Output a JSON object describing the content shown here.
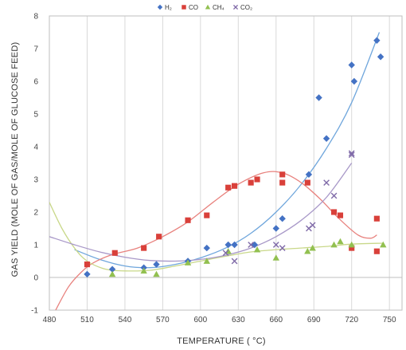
{
  "chart_data": {
    "type": "scatter",
    "title": "",
    "xlabel": "TEMPERATURE ( °C)",
    "ylabel": "GAS YIELD (MOLE OF GAS/MOLE OF GLUCOSE FEED)",
    "xlim": [
      480,
      760
    ],
    "ylim": [
      -1,
      8
    ],
    "x_ticks": [
      480,
      510,
      540,
      570,
      600,
      630,
      660,
      690,
      720,
      750
    ],
    "y_ticks": [
      -1,
      0,
      1,
      2,
      3,
      4,
      5,
      6,
      7,
      8
    ],
    "x_tick_labels": [
      "480",
      "510",
      "540",
      "570",
      "600",
      "630",
      "660",
      "690",
      "720",
      "750"
    ],
    "y_tick_labels": [
      "-1",
      "0",
      "1",
      "2",
      "3",
      "4",
      "5",
      "6",
      "7",
      "8"
    ],
    "grid": "vertical",
    "legend_position": "top-center",
    "series": [
      {
        "name": "H₂",
        "marker": "diamond",
        "color": "#4472C4",
        "points": [
          [
            510,
            0.1
          ],
          [
            530,
            0.25
          ],
          [
            555,
            0.3
          ],
          [
            565,
            0.4
          ],
          [
            590,
            0.5
          ],
          [
            605,
            0.9
          ],
          [
            622,
            1.0
          ],
          [
            627,
            1.0
          ],
          [
            643,
            1.0
          ],
          [
            660,
            1.5
          ],
          [
            665,
            1.8
          ],
          [
            686,
            3.15
          ],
          [
            694,
            5.5
          ],
          [
            700,
            4.25
          ],
          [
            720,
            6.5
          ],
          [
            722,
            6.0
          ],
          [
            740,
            7.25
          ],
          [
            743,
            6.75
          ]
        ]
      },
      {
        "name": "CO",
        "marker": "square",
        "color": "#D9403A",
        "points": [
          [
            510,
            0.4
          ],
          [
            532,
            0.75
          ],
          [
            555,
            0.9
          ],
          [
            567,
            1.25
          ],
          [
            590,
            1.75
          ],
          [
            605,
            1.9
          ],
          [
            622,
            2.75
          ],
          [
            627,
            2.8
          ],
          [
            640,
            2.9
          ],
          [
            645,
            3.0
          ],
          [
            665,
            3.15
          ],
          [
            665,
            2.9
          ],
          [
            685,
            2.9
          ],
          [
            706,
            2.0
          ],
          [
            711,
            1.9
          ],
          [
            720,
            0.9
          ],
          [
            740,
            1.8
          ],
          [
            740,
            0.8
          ]
        ]
      },
      {
        "name": "CH₄",
        "marker": "triangle",
        "color": "#92C050",
        "points": [
          [
            530,
            0.1
          ],
          [
            555,
            0.2
          ],
          [
            565,
            0.1
          ],
          [
            590,
            0.45
          ],
          [
            605,
            0.5
          ],
          [
            622,
            0.8
          ],
          [
            645,
            0.85
          ],
          [
            660,
            0.6
          ],
          [
            685,
            0.8
          ],
          [
            689,
            0.9
          ],
          [
            706,
            1.0
          ],
          [
            711,
            1.1
          ],
          [
            720,
            1.0
          ],
          [
            745,
            1.0
          ]
        ]
      },
      {
        "name": "CO₂",
        "marker": "x",
        "color": "#7F6AA8",
        "points": [
          [
            620,
            0.75
          ],
          [
            627,
            0.5
          ],
          [
            640,
            1.0
          ],
          [
            660,
            1.0
          ],
          [
            665,
            0.9
          ],
          [
            686,
            1.5
          ],
          [
            689,
            1.6
          ],
          [
            700,
            2.9
          ],
          [
            706,
            2.5
          ],
          [
            720,
            3.8
          ],
          [
            720,
            3.75
          ]
        ]
      }
    ],
    "trendlines": [
      {
        "series": "H₂",
        "color": "#6FA6DC",
        "points": [
          [
            500,
            0.85
          ],
          [
            520,
            0.55
          ],
          [
            540,
            0.35
          ],
          [
            560,
            0.3
          ],
          [
            580,
            0.4
          ],
          [
            600,
            0.6
          ],
          [
            620,
            0.9
          ],
          [
            640,
            1.35
          ],
          [
            660,
            2.0
          ],
          [
            680,
            2.85
          ],
          [
            700,
            3.95
          ],
          [
            720,
            5.35
          ],
          [
            742,
            7.5
          ]
        ]
      },
      {
        "series": "CO",
        "color": "#E8827E",
        "points": [
          [
            485,
            -1.0
          ],
          [
            495,
            -0.3
          ],
          [
            505,
            0.15
          ],
          [
            515,
            0.45
          ],
          [
            530,
            0.7
          ],
          [
            550,
            0.9
          ],
          [
            570,
            1.25
          ],
          [
            590,
            1.7
          ],
          [
            610,
            2.3
          ],
          [
            630,
            2.85
          ],
          [
            650,
            3.2
          ],
          [
            665,
            3.2
          ],
          [
            680,
            2.9
          ],
          [
            695,
            2.4
          ],
          [
            710,
            1.8
          ],
          [
            725,
            1.3
          ],
          [
            735,
            1.2
          ],
          [
            740,
            1.3
          ]
        ]
      },
      {
        "series": "CH₄",
        "color": "#C9D88A",
        "points": [
          [
            480,
            2.3
          ],
          [
            490,
            1.5
          ],
          [
            500,
            0.9
          ],
          [
            510,
            0.5
          ],
          [
            525,
            0.25
          ],
          [
            540,
            0.2
          ],
          [
            560,
            0.22
          ],
          [
            580,
            0.35
          ],
          [
            600,
            0.5
          ],
          [
            620,
            0.65
          ],
          [
            640,
            0.78
          ],
          [
            660,
            0.85
          ],
          [
            680,
            0.9
          ],
          [
            700,
            0.95
          ],
          [
            720,
            1.02
          ],
          [
            745,
            1.05
          ]
        ]
      },
      {
        "series": "CO₂",
        "color": "#A898C8",
        "points": [
          [
            480,
            1.25
          ],
          [
            500,
            1.0
          ],
          [
            520,
            0.78
          ],
          [
            540,
            0.62
          ],
          [
            560,
            0.52
          ],
          [
            580,
            0.5
          ],
          [
            600,
            0.55
          ],
          [
            620,
            0.68
          ],
          [
            640,
            0.9
          ],
          [
            660,
            1.25
          ],
          [
            680,
            1.75
          ],
          [
            700,
            2.45
          ],
          [
            720,
            3.5
          ]
        ]
      }
    ]
  }
}
